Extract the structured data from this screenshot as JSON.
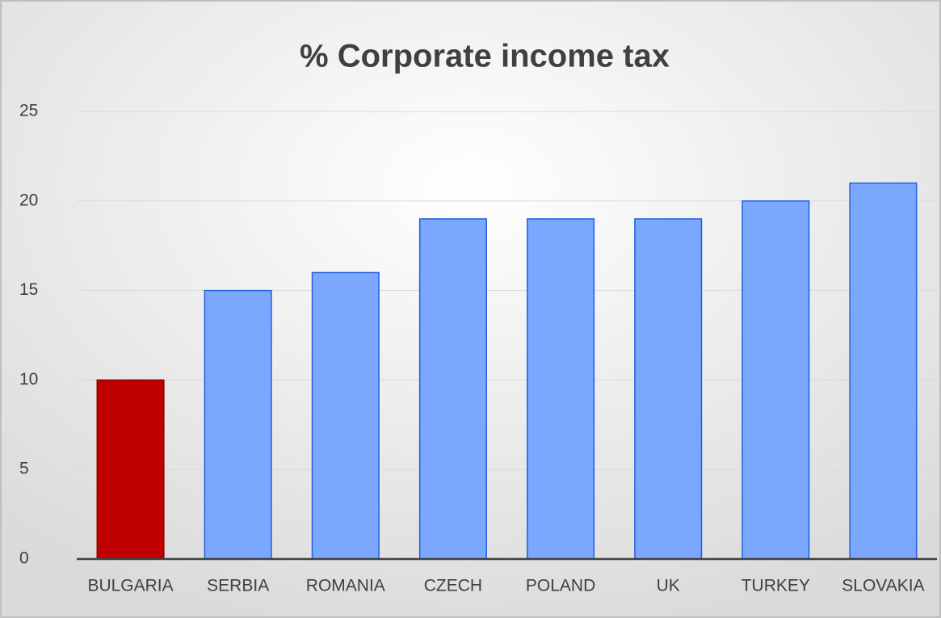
{
  "chart_data": {
    "type": "bar",
    "title": "% Corporate income tax",
    "categories": [
      "BULGARIA",
      "SERBIA",
      "ROMANIA",
      "CZECH",
      "POLAND",
      "UK",
      "TURKEY",
      "SLOVAKIA"
    ],
    "values": [
      10,
      15,
      16,
      19,
      19,
      19,
      20,
      21
    ],
    "colors": [
      "#c00000",
      "#7ba7ff",
      "#7ba7ff",
      "#7ba7ff",
      "#7ba7ff",
      "#7ba7ff",
      "#7ba7ff",
      "#7ba7ff"
    ],
    "ylim": [
      0,
      25
    ],
    "yticks": [
      0,
      5,
      10,
      15,
      20,
      25
    ],
    "grid": true
  }
}
